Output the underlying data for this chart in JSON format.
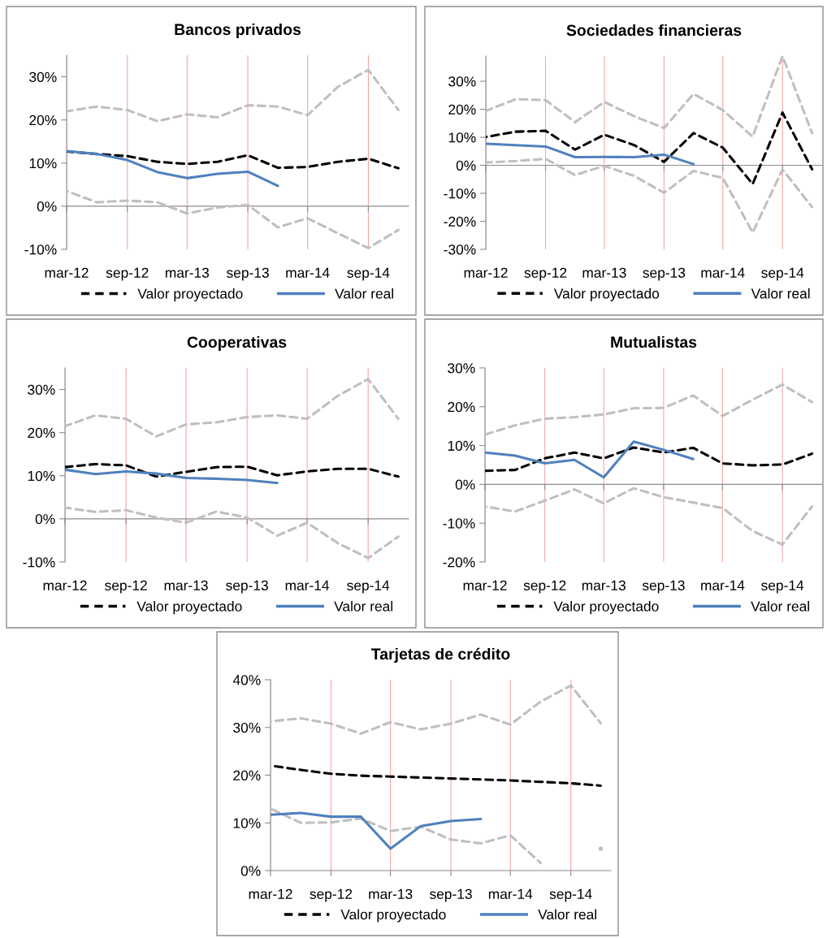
{
  "chart_data": [
    {
      "type": "line",
      "title": "Bancos privados",
      "x": [
        "2012-03",
        "2012-06",
        "2012-09",
        "2012-12",
        "2013-03",
        "2013-06",
        "2013-09",
        "2013-12",
        "2014-03",
        "2014-06",
        "2014-09",
        "2014-12"
      ],
      "xlim": [
        "2012-03",
        "2015-01"
      ],
      "xticks": [
        {
          "value": "2012-03",
          "label": "mar-12"
        },
        {
          "value": "2012-09",
          "label": "sep-12"
        },
        {
          "value": "2013-03",
          "label": "mar-13"
        },
        {
          "value": "2013-09",
          "label": "sep-13"
        },
        {
          "value": "2014-03",
          "label": "mar-14"
        },
        {
          "value": "2014-09",
          "label": "sep-14"
        }
      ],
      "ylim": [
        -10,
        35
      ],
      "yticks": [
        {
          "value": -10,
          "label": "-10%"
        },
        {
          "value": 0,
          "label": "0%"
        },
        {
          "value": 10,
          "label": "10%"
        },
        {
          "value": 20,
          "label": "20%"
        },
        {
          "value": 30,
          "label": "30%"
        }
      ],
      "grid": "x",
      "legend": "bottom",
      "series": [
        {
          "color": "#bfbfbf",
          "line_style": "dashed",
          "values": [
            22.0,
            23.1,
            22.3,
            19.7,
            21.3,
            20.6,
            23.4,
            23.1,
            21.1,
            27.7,
            31.6,
            22.3
          ]
        },
        {
          "color": "#bfbfbf",
          "line_style": "dashed",
          "values": [
            3.5,
            0.9,
            1.3,
            0.9,
            -1.7,
            -0.3,
            0.3,
            -4.9,
            -2.8,
            -6.3,
            -9.7,
            -5.5
          ]
        },
        {
          "name": "Valor proyectado",
          "color": "#000000",
          "line_style": "dashed",
          "values": [
            12.7,
            12.1,
            11.6,
            10.3,
            9.8,
            10.3,
            11.8,
            8.9,
            9.1,
            10.3,
            11.0,
            8.8
          ]
        },
        {
          "name": "Valor real",
          "color": "#4f81bd",
          "line_style": "solid",
          "values": [
            12.8,
            12.1,
            10.7,
            7.9,
            6.5,
            7.5,
            8.0,
            4.7,
            null,
            null,
            null,
            null
          ]
        }
      ]
    },
    {
      "type": "line",
      "title": "Sociedades financieras",
      "x": [
        "2012-03",
        "2012-06",
        "2012-09",
        "2012-12",
        "2013-03",
        "2013-06",
        "2013-09",
        "2013-12",
        "2014-03",
        "2014-06",
        "2014-09",
        "2014-12"
      ],
      "xlim": [
        "2012-03",
        "2015-01"
      ],
      "xticks": [
        {
          "value": "2012-03",
          "label": "mar-12"
        },
        {
          "value": "2012-09",
          "label": "sep-12"
        },
        {
          "value": "2013-03",
          "label": "mar-13"
        },
        {
          "value": "2013-09",
          "label": "sep-13"
        },
        {
          "value": "2014-03",
          "label": "mar-14"
        },
        {
          "value": "2014-09",
          "label": "sep-14"
        }
      ],
      "ylim": [
        -30,
        39
      ],
      "yticks": [
        {
          "value": -30,
          "label": "-30%"
        },
        {
          "value": -20,
          "label": "-20%"
        },
        {
          "value": -10,
          "label": "-10%"
        },
        {
          "value": 0,
          "label": "0%"
        },
        {
          "value": 10,
          "label": "10%"
        },
        {
          "value": 20,
          "label": "20%"
        },
        {
          "value": 30,
          "label": "30%"
        }
      ],
      "grid": "x",
      "legend": "bottom",
      "series": [
        {
          "color": "#bfbfbf",
          "line_style": "dashed",
          "values": [
            19.4,
            23.6,
            23.3,
            15.4,
            22.6,
            17.5,
            13.3,
            25.5,
            19.7,
            10.2,
            39,
            11.5
          ]
        },
        {
          "color": "#bfbfbf",
          "line_style": "dashed",
          "values": [
            1.0,
            1.5,
            2.3,
            -3.5,
            -0.2,
            -3.8,
            -9.8,
            -2.0,
            -4.5,
            -24.0,
            -1.5,
            -14.9
          ]
        },
        {
          "name": "Valor proyectado",
          "color": "#000000",
          "line_style": "dashed",
          "values": [
            10.1,
            12.0,
            12.3,
            5.6,
            10.9,
            7.2,
            1.2,
            11.5,
            6.3,
            -6.7,
            18.8,
            -1.4
          ]
        },
        {
          "name": "Valor real",
          "color": "#4f81bd",
          "line_style": "solid",
          "values": [
            7.7,
            7.2,
            6.7,
            2.9,
            3.0,
            2.9,
            3.8,
            0.4,
            null,
            null,
            null,
            null
          ]
        }
      ]
    },
    {
      "type": "line",
      "title": "Cooperativas",
      "x": [
        "2012-03",
        "2012-06",
        "2012-09",
        "2012-12",
        "2013-03",
        "2013-06",
        "2013-09",
        "2013-12",
        "2014-03",
        "2014-06",
        "2014-09",
        "2014-12"
      ],
      "xlim": [
        "2012-03",
        "2015-01"
      ],
      "xticks": [
        {
          "value": "2012-03",
          "label": "mar-12"
        },
        {
          "value": "2012-09",
          "label": "sep-12"
        },
        {
          "value": "2013-03",
          "label": "mar-13"
        },
        {
          "value": "2013-09",
          "label": "sep-13"
        },
        {
          "value": "2014-03",
          "label": "mar-14"
        },
        {
          "value": "2014-09",
          "label": "sep-14"
        }
      ],
      "ylim": [
        -10,
        35
      ],
      "yticks": [
        {
          "value": -10,
          "label": "-10%"
        },
        {
          "value": 0,
          "label": "0%"
        },
        {
          "value": 10,
          "label": "10%"
        },
        {
          "value": 20,
          "label": "20%"
        },
        {
          "value": 30,
          "label": "30%"
        }
      ],
      "grid": "x",
      "legend": "bottom",
      "series": [
        {
          "color": "#bfbfbf",
          "line_style": "dashed",
          "values": [
            21.5,
            24.0,
            23.2,
            19.1,
            21.9,
            22.4,
            23.6,
            24.0,
            23.2,
            28.5,
            32.4,
            23.2
          ]
        },
        {
          "color": "#bfbfbf",
          "line_style": "dashed",
          "values": [
            2.6,
            1.6,
            2.0,
            0.3,
            -0.9,
            1.7,
            0.3,
            -3.9,
            -0.9,
            -5.6,
            -9.1,
            -4.1
          ]
        },
        {
          "name": "Valor proyectado",
          "color": "#000000",
          "line_style": "dashed",
          "values": [
            12.0,
            12.7,
            12.4,
            9.8,
            10.9,
            12.0,
            12.1,
            10.1,
            11.0,
            11.6,
            11.6,
            9.8
          ]
        },
        {
          "name": "Valor real",
          "color": "#4f81bd",
          "line_style": "solid",
          "values": [
            11.4,
            10.4,
            11.0,
            10.5,
            9.5,
            9.3,
            9.0,
            8.3,
            null,
            null,
            null,
            null
          ]
        }
      ]
    },
    {
      "type": "line",
      "title": "Mutualistas",
      "x": [
        "2012-03",
        "2012-06",
        "2012-09",
        "2012-12",
        "2013-03",
        "2013-06",
        "2013-09",
        "2013-12",
        "2014-03",
        "2014-06",
        "2014-09",
        "2014-12"
      ],
      "xlim": [
        "2012-03",
        "2015-01"
      ],
      "xticks": [
        {
          "value": "2012-03",
          "label": "mar-12"
        },
        {
          "value": "2012-09",
          "label": "sep-12"
        },
        {
          "value": "2013-03",
          "label": "mar-13"
        },
        {
          "value": "2013-09",
          "label": "sep-13"
        },
        {
          "value": "2014-03",
          "label": "mar-14"
        },
        {
          "value": "2014-09",
          "label": "sep-14"
        }
      ],
      "ylim": [
        -20,
        30
      ],
      "yticks": [
        {
          "value": -20,
          "label": "-20%"
        },
        {
          "value": -10,
          "label": "-10%"
        },
        {
          "value": 0,
          "label": "0%"
        },
        {
          "value": 10,
          "label": "10%"
        },
        {
          "value": 20,
          "label": "20%"
        },
        {
          "value": 30,
          "label": "30%"
        }
      ],
      "grid": "x",
      "legend": "bottom",
      "series": [
        {
          "color": "#bfbfbf",
          "line_style": "dashed",
          "values": [
            12.8,
            15.2,
            16.9,
            17.3,
            18.0,
            19.6,
            19.7,
            22.9,
            17.6,
            21.8,
            25.7,
            21.2
          ]
        },
        {
          "color": "#bfbfbf",
          "line_style": "dashed",
          "values": [
            -5.7,
            -7.0,
            -4.2,
            -1.3,
            -4.9,
            -1.0,
            -3.3,
            -4.7,
            -6.1,
            -12.0,
            -15.5,
            -5.7
          ]
        },
        {
          "name": "Valor proyectado",
          "color": "#000000",
          "line_style": "dashed",
          "values": [
            3.5,
            3.7,
            6.7,
            8.2,
            6.7,
            9.5,
            8.2,
            9.4,
            5.4,
            4.9,
            5.1,
            7.9
          ]
        },
        {
          "name": "Valor real",
          "color": "#4f81bd",
          "line_style": "solid",
          "values": [
            8.2,
            7.4,
            5.4,
            6.3,
            1.8,
            11.0,
            8.9,
            6.5,
            null,
            null,
            null,
            null
          ]
        }
      ]
    },
    {
      "type": "line",
      "title": "Tarjetas de crédito",
      "x": [
        "2012-03",
        "2012-06",
        "2012-09",
        "2012-12",
        "2013-03",
        "2013-06",
        "2013-09",
        "2013-12",
        "2014-03",
        "2014-06",
        "2014-09",
        "2014-12"
      ],
      "xlim": [
        "2012-03",
        "2015-01"
      ],
      "xticks": [
        {
          "value": "2012-03",
          "label": "mar-12"
        },
        {
          "value": "2012-09",
          "label": "sep-12"
        },
        {
          "value": "2013-03",
          "label": "mar-13"
        },
        {
          "value": "2013-09",
          "label": "sep-13"
        },
        {
          "value": "2014-03",
          "label": "mar-14"
        },
        {
          "value": "2014-09",
          "label": "sep-14"
        }
      ],
      "ylim": [
        0,
        40
      ],
      "yticks": [
        {
          "value": 0,
          "label": "0%"
        },
        {
          "value": 10,
          "label": "10%"
        },
        {
          "value": 20,
          "label": "20%"
        },
        {
          "value": 30,
          "label": "30%"
        },
        {
          "value": 40,
          "label": "40%"
        }
      ],
      "grid": "x",
      "legend": "bottom",
      "series": [
        {
          "color": "#bfbfbf",
          "line_style": "dashed",
          "values": [
            31.3,
            31.9,
            30.8,
            28.7,
            31.1,
            29.6,
            30.8,
            32.7,
            30.6,
            35.4,
            38.8,
            30.9
          ]
        },
        {
          "color": "#bfbfbf",
          "line_style": "dashed",
          "values": [
            13.0,
            10.0,
            10.1,
            10.9,
            8.3,
            9.2,
            6.5,
            5.7,
            7.4,
            1.6,
            null,
            4.6
          ]
        },
        {
          "name": "Valor proyectado",
          "color": "#000000",
          "line_style": "dashed",
          "values": [
            22.0,
            21.1,
            20.3,
            19.9,
            19.7,
            19.5,
            19.3,
            19.1,
            18.9,
            18.6,
            18.3,
            17.8
          ]
        },
        {
          "name": "Valor real",
          "color": "#4f81bd",
          "line_style": "solid",
          "values": [
            11.7,
            12.1,
            11.3,
            11.3,
            4.6,
            9.3,
            10.4,
            10.8,
            null,
            null,
            null,
            null
          ]
        }
      ]
    }
  ]
}
